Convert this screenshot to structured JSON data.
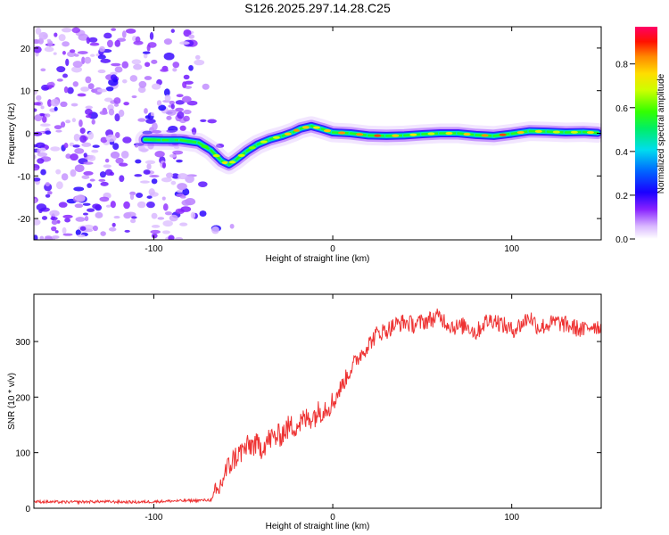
{
  "figure_title": "S126.2025.297.14.28.C25",
  "chart_data": [
    {
      "type": "heatmap",
      "title": "S126.2025.297.14.28.C25",
      "xlabel": "Height of straight line (km)",
      "ylabel": "Frequency (Hz)",
      "xlim": [
        -167,
        150
      ],
      "ylim": [
        -25,
        25
      ],
      "xticks": [
        -100,
        0,
        100
      ],
      "yticks": [
        -20,
        -10,
        0,
        10,
        20
      ],
      "colorbar": {
        "label": "Normalized spectral amplitude",
        "range": [
          0.0,
          0.97
        ],
        "ticks": [
          0.0,
          0.2,
          0.4,
          0.6,
          0.8
        ]
      },
      "ridge": {
        "x": [
          -105,
          -95,
          -85,
          -75,
          -68,
          -62,
          -58,
          -54,
          -48,
          -42,
          -35,
          -28,
          -22,
          -18,
          -12,
          -6,
          0,
          10,
          20,
          30,
          40,
          50,
          60,
          70,
          80,
          90,
          100,
          110,
          120,
          130,
          140,
          148
        ],
        "y": [
          -1.5,
          -1.6,
          -1.6,
          -2.2,
          -4.0,
          -6.5,
          -7.3,
          -6.2,
          -4.2,
          -2.6,
          -1.4,
          -0.6,
          0.3,
          1.1,
          1.7,
          1.0,
          0.2,
          0.0,
          -0.5,
          -0.6,
          -0.5,
          -0.2,
          0.0,
          0.0,
          -0.4,
          -0.6,
          -0.1,
          0.5,
          0.4,
          0.2,
          0.3,
          0.1
        ],
        "amplitude": [
          0.55,
          0.5,
          0.55,
          0.6,
          0.7,
          0.75,
          0.7,
          0.7,
          0.65,
          0.7,
          0.7,
          0.8,
          0.85,
          0.8,
          0.75,
          0.8,
          0.85,
          0.85,
          0.9,
          0.8,
          0.75,
          0.7,
          0.75,
          0.8,
          0.85,
          0.9,
          0.8,
          0.75,
          0.7,
          0.7,
          0.75,
          0.7
        ]
      },
      "noise_region_x": [
        -167,
        -78
      ]
    },
    {
      "type": "line",
      "xlabel": "Height of straight line (km)",
      "ylabel": "SNR (10 * v/v)",
      "xlim": [
        -167,
        150
      ],
      "ylim": [
        0,
        385
      ],
      "xticks": [
        -100,
        0,
        100
      ],
      "yticks": [
        0,
        100,
        200,
        300
      ],
      "series": [
        {
          "name": "SNR",
          "color": "#ee3333",
          "x": [
            -167,
            -150,
            -130,
            -110,
            -90,
            -75,
            -68,
            -64,
            -60,
            -55,
            -50,
            -45,
            -40,
            -35,
            -30,
            -25,
            -20,
            -15,
            -10,
            -5,
            0,
            5,
            10,
            15,
            20,
            25,
            30,
            35,
            40,
            45,
            50,
            55,
            60,
            65,
            70,
            75,
            80,
            85,
            90,
            95,
            100,
            105,
            110,
            115,
            120,
            125,
            130,
            135,
            140,
            145,
            150
          ],
          "y": [
            12,
            11,
            12,
            11,
            13,
            14,
            15,
            30,
            65,
            90,
            105,
            115,
            110,
            125,
            130,
            145,
            150,
            160,
            168,
            180,
            190,
            220,
            250,
            275,
            295,
            315,
            320,
            330,
            335,
            330,
            335,
            340,
            345,
            330,
            325,
            330,
            315,
            335,
            340,
            330,
            320,
            330,
            345,
            325,
            330,
            335,
            330,
            325,
            320,
            330,
            325
          ]
        }
      ]
    }
  ]
}
